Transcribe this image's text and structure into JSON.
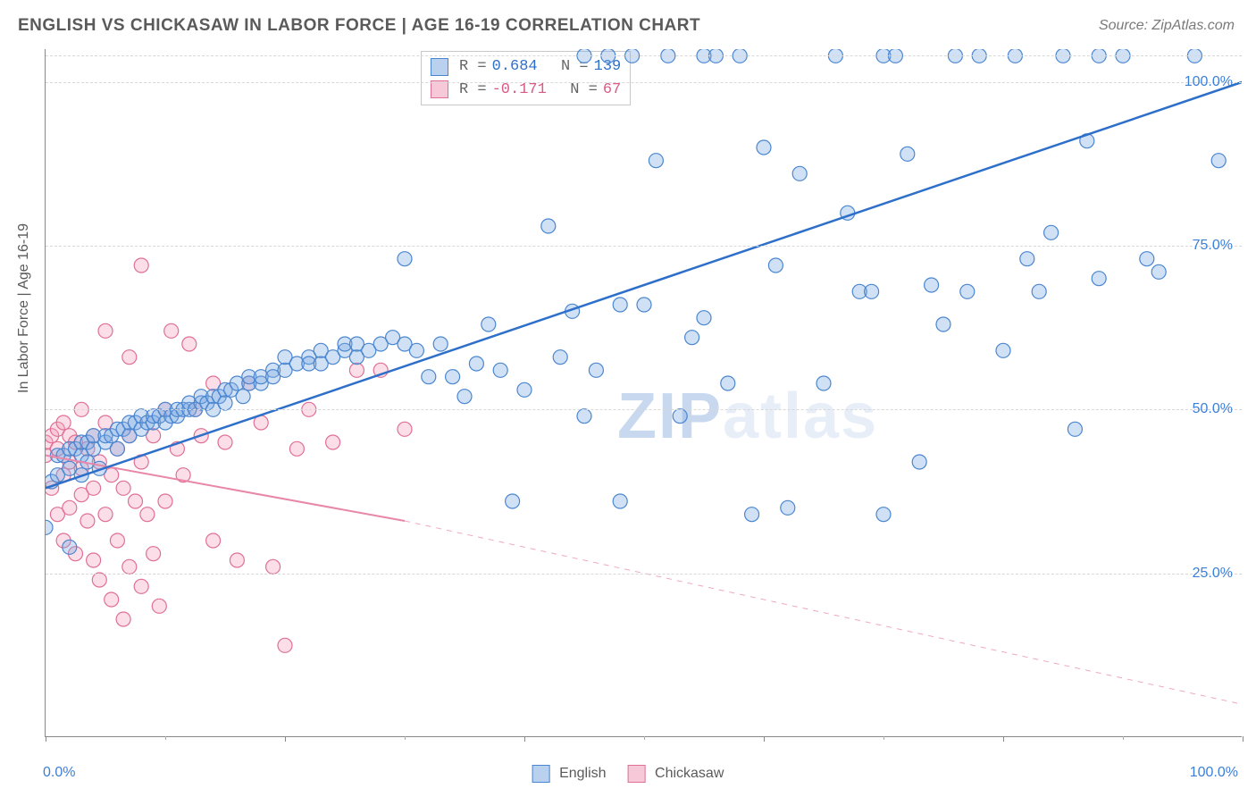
{
  "title": "ENGLISH VS CHICKASAW IN LABOR FORCE | AGE 16-19 CORRELATION CHART",
  "source": "Source: ZipAtlas.com",
  "y_axis_label": "In Labor Force | Age 16-19",
  "watermark_a": "ZIP",
  "watermark_b": "atlas",
  "axis": {
    "x_min_label": "0.0%",
    "x_max_label": "100.0%",
    "y_ticks": [
      {
        "v": 25,
        "label": "25.0%"
      },
      {
        "v": 50,
        "label": "50.0%"
      },
      {
        "v": 75,
        "label": "75.0%"
      },
      {
        "v": 100,
        "label": "100.0%"
      }
    ],
    "x_tick_positions": [
      0,
      10,
      20,
      30,
      40,
      50,
      60,
      70,
      80,
      90,
      100
    ],
    "xlim": [
      0,
      100
    ],
    "ylim": [
      0,
      105
    ],
    "grid_color": "#d8d8d8",
    "background_color": "#ffffff"
  },
  "legend": {
    "series": [
      {
        "name": "English",
        "fill": "#b9d0ef",
        "stroke": "#4a86d0"
      },
      {
        "name": "Chickasaw",
        "fill": "#f7c9d8",
        "stroke": "#e06f95"
      }
    ]
  },
  "stats": [
    {
      "series": "English",
      "R": "0.684",
      "N": "139",
      "fill": "#b9d0ef",
      "stroke": "#4a86d0",
      "text_color": "#2d6fc9"
    },
    {
      "series": "Chickasaw",
      "R": "-0.171",
      "N": "67",
      "fill": "#f7c9d8",
      "stroke": "#e06f95",
      "text_color": "#d85a86"
    }
  ],
  "trend_lines": {
    "english": {
      "x1": 0,
      "y1": 38,
      "x2": 100,
      "y2": 100,
      "color": "#2d6fc9",
      "width": 2.5,
      "dash": "none"
    },
    "chickasaw_solid": {
      "x1": 0,
      "y1": 43,
      "x2": 30,
      "y2": 33,
      "color": "#e887a8",
      "width": 2,
      "dash": "none"
    },
    "chickasaw_dash": {
      "x1": 30,
      "y1": 33,
      "x2": 100,
      "y2": 5,
      "color": "#f0a8bf",
      "width": 1,
      "dash": "6,6"
    }
  },
  "series_data": {
    "english_marker_r": 8,
    "chickasaw_marker_r": 8,
    "english": [
      [
        0,
        32
      ],
      [
        0.5,
        39
      ],
      [
        1,
        40
      ],
      [
        1,
        43
      ],
      [
        1.5,
        43
      ],
      [
        2,
        41
      ],
      [
        2,
        44
      ],
      [
        2,
        29
      ],
      [
        2.5,
        44
      ],
      [
        3,
        40
      ],
      [
        3,
        43
      ],
      [
        3,
        45
      ],
      [
        3.5,
        45
      ],
      [
        3.5,
        42
      ],
      [
        4,
        44
      ],
      [
        4,
        46
      ],
      [
        4.5,
        41
      ],
      [
        5,
        45
      ],
      [
        5,
        46
      ],
      [
        5.5,
        46
      ],
      [
        6,
        44
      ],
      [
        6,
        47
      ],
      [
        6.5,
        47
      ],
      [
        7,
        46
      ],
      [
        7,
        48
      ],
      [
        7.5,
        48
      ],
      [
        8,
        47
      ],
      [
        8,
        49
      ],
      [
        8.5,
        48
      ],
      [
        9,
        48
      ],
      [
        9,
        49
      ],
      [
        9.5,
        49
      ],
      [
        10,
        48
      ],
      [
        10,
        50
      ],
      [
        10.5,
        49
      ],
      [
        11,
        49
      ],
      [
        11,
        50
      ],
      [
        11.5,
        50
      ],
      [
        12,
        50
      ],
      [
        12,
        51
      ],
      [
        12.5,
        50
      ],
      [
        13,
        51
      ],
      [
        13,
        52
      ],
      [
        13.5,
        51
      ],
      [
        14,
        52
      ],
      [
        14,
        50
      ],
      [
        14.5,
        52
      ],
      [
        15,
        53
      ],
      [
        15,
        51
      ],
      [
        15.5,
        53
      ],
      [
        16,
        54
      ],
      [
        16.5,
        52
      ],
      [
        17,
        54
      ],
      [
        17,
        55
      ],
      [
        18,
        54
      ],
      [
        18,
        55
      ],
      [
        19,
        56
      ],
      [
        19,
        55
      ],
      [
        20,
        56
      ],
      [
        20,
        58
      ],
      [
        21,
        57
      ],
      [
        22,
        58
      ],
      [
        22,
        57
      ],
      [
        23,
        57
      ],
      [
        23,
        59
      ],
      [
        24,
        58
      ],
      [
        25,
        59
      ],
      [
        25,
        60
      ],
      [
        26,
        58
      ],
      [
        26,
        60
      ],
      [
        27,
        59
      ],
      [
        28,
        60
      ],
      [
        29,
        61
      ],
      [
        30,
        60
      ],
      [
        30,
        73
      ],
      [
        31,
        59
      ],
      [
        32,
        55
      ],
      [
        33,
        60
      ],
      [
        34,
        55
      ],
      [
        35,
        52
      ],
      [
        36,
        57
      ],
      [
        37,
        63
      ],
      [
        38,
        56
      ],
      [
        39,
        36
      ],
      [
        40,
        53
      ],
      [
        42,
        78
      ],
      [
        43,
        58
      ],
      [
        44,
        65
      ],
      [
        45,
        49
      ],
      [
        45,
        104
      ],
      [
        46,
        56
      ],
      [
        47,
        104
      ],
      [
        48,
        66
      ],
      [
        48,
        36
      ],
      [
        49,
        104
      ],
      [
        50,
        66
      ],
      [
        51,
        88
      ],
      [
        52,
        104
      ],
      [
        53,
        49
      ],
      [
        54,
        61
      ],
      [
        55,
        64
      ],
      [
        55,
        104
      ],
      [
        56,
        104
      ],
      [
        57,
        54
      ],
      [
        58,
        104
      ],
      [
        59,
        34
      ],
      [
        60,
        90
      ],
      [
        61,
        72
      ],
      [
        62,
        35
      ],
      [
        63,
        86
      ],
      [
        65,
        54
      ],
      [
        66,
        104
      ],
      [
        67,
        80
      ],
      [
        68,
        68
      ],
      [
        69,
        68
      ],
      [
        70,
        34
      ],
      [
        70,
        104
      ],
      [
        71,
        104
      ],
      [
        72,
        89
      ],
      [
        73,
        42
      ],
      [
        74,
        69
      ],
      [
        75,
        63
      ],
      [
        76,
        104
      ],
      [
        77,
        68
      ],
      [
        78,
        104
      ],
      [
        80,
        59
      ],
      [
        81,
        104
      ],
      [
        82,
        73
      ],
      [
        83,
        68
      ],
      [
        84,
        77
      ],
      [
        85,
        104
      ],
      [
        86,
        47
      ],
      [
        87,
        91
      ],
      [
        88,
        104
      ],
      [
        88,
        70
      ],
      [
        90,
        104
      ],
      [
        92,
        73
      ],
      [
        93,
        71
      ],
      [
        96,
        104
      ],
      [
        98,
        88
      ]
    ],
    "chickasaw": [
      [
        0,
        43
      ],
      [
        0,
        45
      ],
      [
        0.5,
        38
      ],
      [
        0.5,
        46
      ],
      [
        1,
        34
      ],
      [
        1,
        44
      ],
      [
        1,
        47
      ],
      [
        1.5,
        30
      ],
      [
        1.5,
        40
      ],
      [
        1.5,
        48
      ],
      [
        2,
        35
      ],
      [
        2,
        42
      ],
      [
        2,
        46
      ],
      [
        2.5,
        28
      ],
      [
        2.5,
        45
      ],
      [
        3,
        37
      ],
      [
        3,
        41
      ],
      [
        3,
        50
      ],
      [
        3.5,
        33
      ],
      [
        3.5,
        44
      ],
      [
        4,
        27
      ],
      [
        4,
        38
      ],
      [
        4,
        46
      ],
      [
        4.5,
        24
      ],
      [
        4.5,
        42
      ],
      [
        5,
        34
      ],
      [
        5,
        48
      ],
      [
        5,
        62
      ],
      [
        5.5,
        21
      ],
      [
        5.5,
        40
      ],
      [
        6,
        30
      ],
      [
        6,
        44
      ],
      [
        6.5,
        18
      ],
      [
        6.5,
        38
      ],
      [
        7,
        26
      ],
      [
        7,
        46
      ],
      [
        7,
        58
      ],
      [
        7.5,
        36
      ],
      [
        8,
        23
      ],
      [
        8,
        42
      ],
      [
        8,
        72
      ],
      [
        8.5,
        34
      ],
      [
        9,
        28
      ],
      [
        9,
        46
      ],
      [
        9.5,
        20
      ],
      [
        10,
        36
      ],
      [
        10,
        50
      ],
      [
        10.5,
        62
      ],
      [
        11,
        44
      ],
      [
        11.5,
        40
      ],
      [
        12,
        60
      ],
      [
        12.5,
        50
      ],
      [
        13,
        46
      ],
      [
        14,
        30
      ],
      [
        14,
        54
      ],
      [
        15,
        45
      ],
      [
        16,
        27
      ],
      [
        17,
        54
      ],
      [
        18,
        48
      ],
      [
        19,
        26
      ],
      [
        20,
        14
      ],
      [
        21,
        44
      ],
      [
        22,
        50
      ],
      [
        24,
        45
      ],
      [
        26,
        56
      ],
      [
        28,
        56
      ],
      [
        30,
        47
      ]
    ]
  },
  "chart_style": {
    "type": "scatter",
    "english_fill": "rgba(123,169,226,0.35)",
    "english_stroke": "#4a86d0",
    "chickasaw_fill": "rgba(244,160,186,0.35)",
    "chickasaw_stroke": "#e06f95",
    "title_fontsize": 19,
    "label_fontsize": 16,
    "tick_fontsize": 16,
    "tick_color": "#3b7fd9"
  }
}
